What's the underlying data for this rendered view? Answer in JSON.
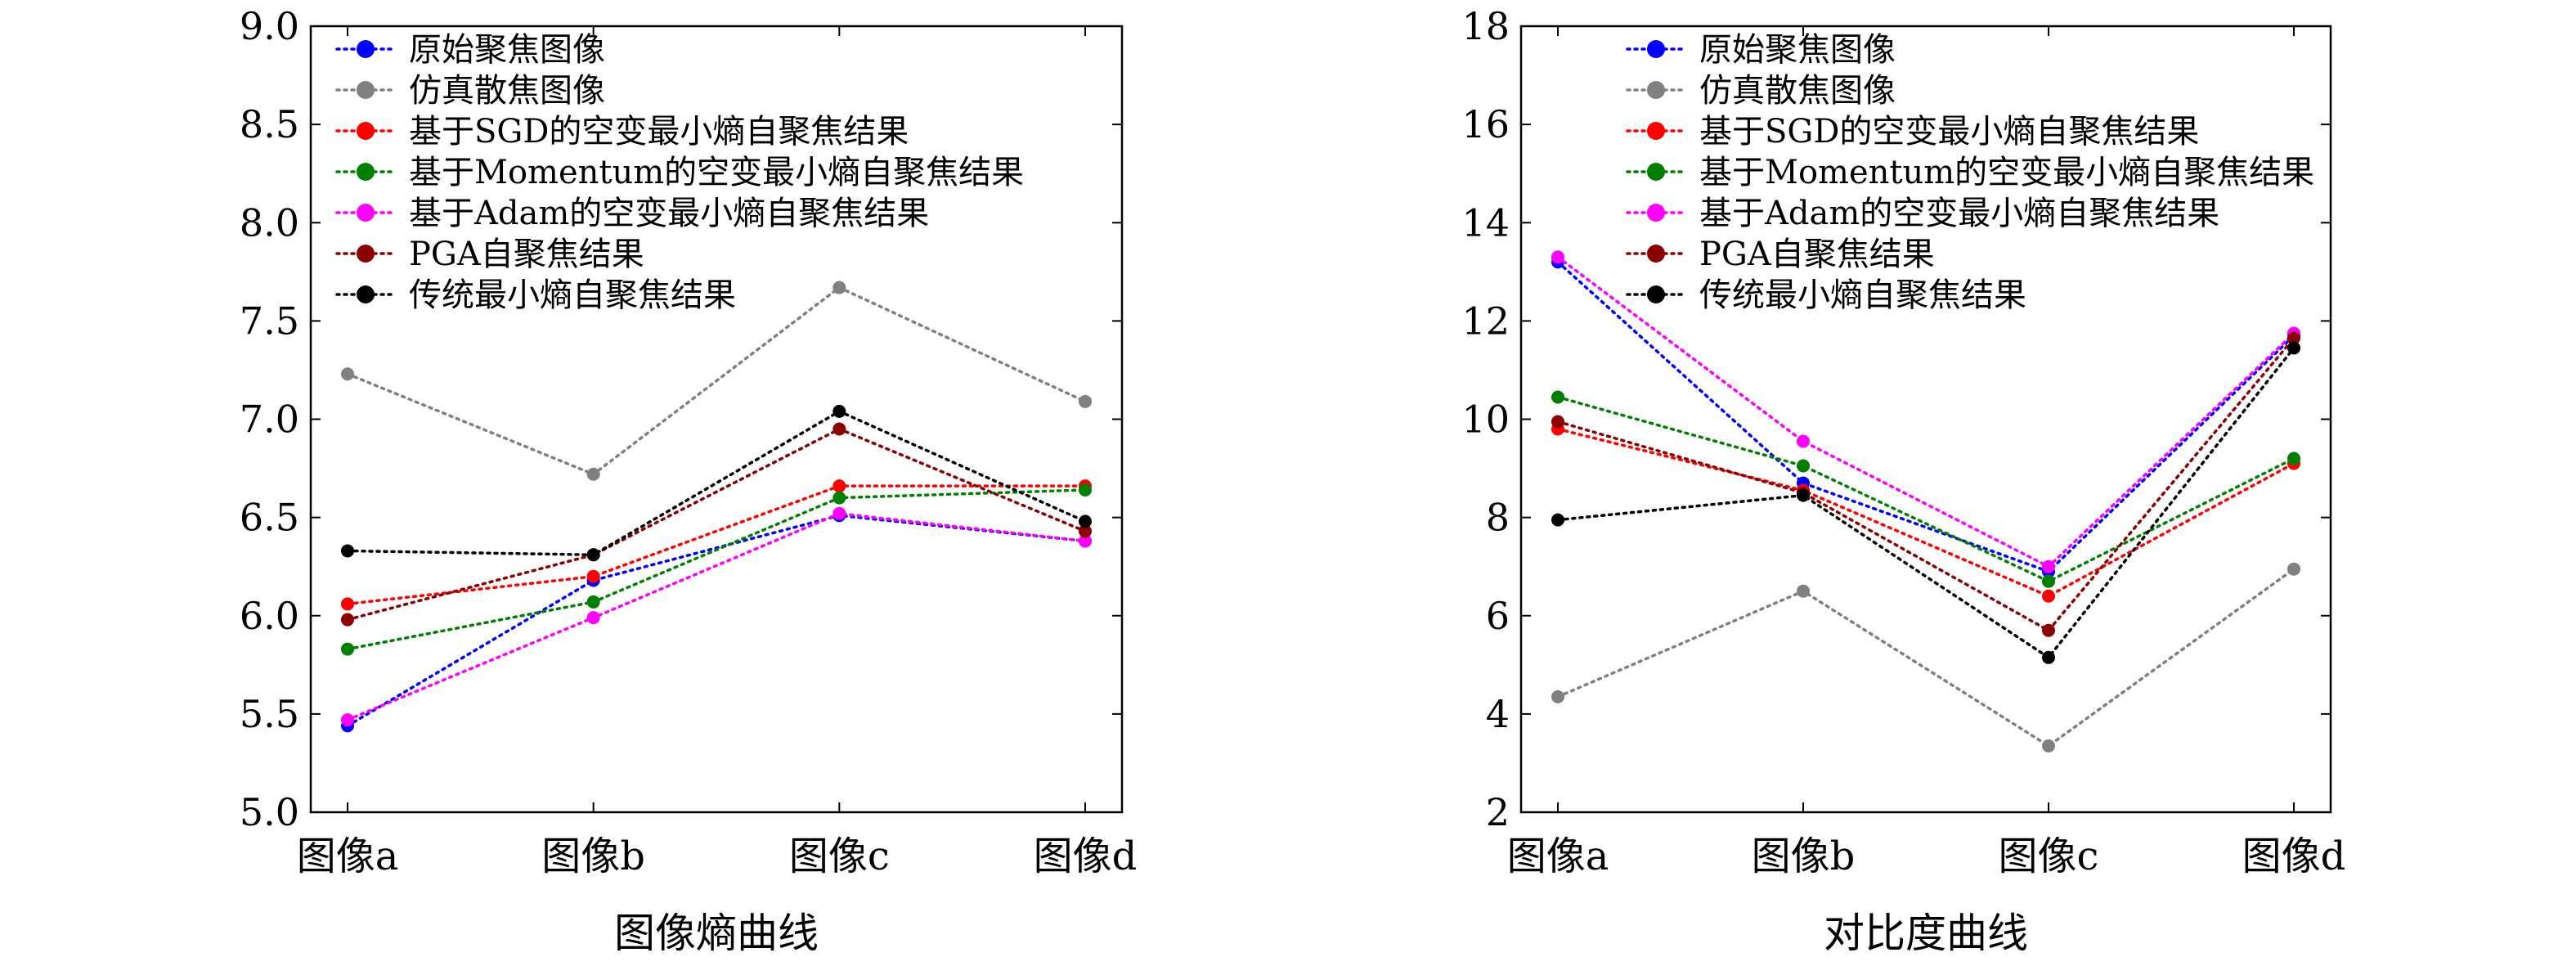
{
  "chart_data": [
    {
      "type": "line",
      "title": "",
      "xlabel": "图像熵曲线",
      "ylabel": "",
      "categories": [
        "图像a",
        "图像b",
        "图像c",
        "图像d"
      ],
      "ylim": [
        5.0,
        9.0
      ],
      "yticks": [
        "5.0",
        "5.5",
        "6.0",
        "6.5",
        "7.0",
        "7.5",
        "8.0",
        "8.5",
        "9.0"
      ],
      "legend_position": "top-left",
      "grid": false,
      "series": [
        {
          "name": "原始聚焦图像",
          "color": "#0000ff",
          "values": [
            5.44,
            6.18,
            6.51,
            6.38
          ]
        },
        {
          "name": "仿真散焦图像",
          "color": "#808080",
          "values": [
            7.23,
            6.72,
            7.67,
            7.09
          ]
        },
        {
          "name": "基于SGD的空变最小熵自聚焦结果",
          "color": "#ff0000",
          "values": [
            6.06,
            6.2,
            6.66,
            6.66
          ]
        },
        {
          "name": "基于Momentum的空变最小熵自聚焦结果",
          "color": "#008000",
          "values": [
            5.83,
            6.07,
            6.6,
            6.64
          ]
        },
        {
          "name": "基于Adam的空变最小熵自聚焦结果",
          "color": "#ff00ff",
          "values": [
            5.47,
            5.99,
            6.52,
            6.38
          ]
        },
        {
          "name": "PGA自聚焦结果",
          "color": "#8b0000",
          "values": [
            5.98,
            6.31,
            6.95,
            6.43
          ]
        },
        {
          "name": "传统最小熵自聚焦结果",
          "color": "#000000",
          "values": [
            6.33,
            6.31,
            7.04,
            6.48
          ]
        }
      ]
    },
    {
      "type": "line",
      "title": "",
      "xlabel": "对比度曲线",
      "ylabel": "",
      "categories": [
        "图像a",
        "图像b",
        "图像c",
        "图像d"
      ],
      "ylim": [
        2,
        18
      ],
      "yticks": [
        "2",
        "4",
        "6",
        "8",
        "10",
        "12",
        "14",
        "16",
        "18"
      ],
      "legend_position": "top-right",
      "grid": false,
      "series": [
        {
          "name": "原始聚焦图像",
          "color": "#0000ff",
          "values": [
            13.2,
            8.7,
            6.9,
            11.7
          ]
        },
        {
          "name": "仿真散焦图像",
          "color": "#808080",
          "values": [
            4.35,
            6.5,
            3.35,
            6.95
          ]
        },
        {
          "name": "基于SGD的空变最小熵自聚焦结果",
          "color": "#ff0000",
          "values": [
            9.8,
            8.55,
            6.4,
            9.1
          ]
        },
        {
          "name": "基于Momentum的空变最小熵自聚焦结果",
          "color": "#008000",
          "values": [
            10.45,
            9.05,
            6.7,
            9.2
          ]
        },
        {
          "name": "基于Adam的空变最小熵自聚焦结果",
          "color": "#ff00ff",
          "values": [
            13.3,
            9.55,
            7.0,
            11.75
          ]
        },
        {
          "name": "PGA自聚焦结果",
          "color": "#8b0000",
          "values": [
            9.95,
            8.5,
            5.7,
            11.65
          ]
        },
        {
          "name": "传统最小熵自聚焦结果",
          "color": "#000000",
          "values": [
            7.95,
            8.45,
            5.15,
            11.45
          ]
        }
      ]
    }
  ]
}
